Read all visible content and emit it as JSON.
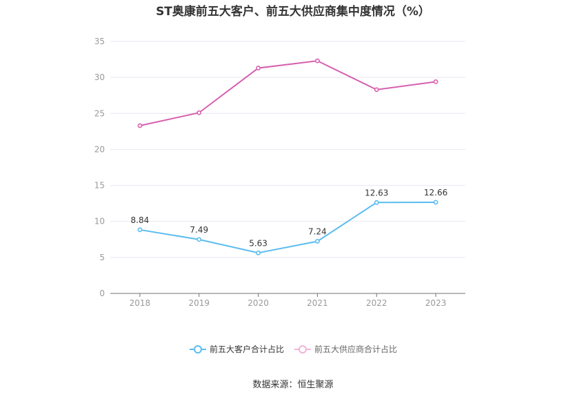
{
  "chart_data": {
    "type": "line",
    "title": "ST奥康前五大客户、前五大供应商集中度情况（%）",
    "categories": [
      "2018",
      "2019",
      "2020",
      "2021",
      "2022",
      "2023"
    ],
    "ylim": [
      0,
      35
    ],
    "yticks": [
      0,
      5,
      10,
      15,
      20,
      25,
      30,
      35
    ],
    "grid": true,
    "legend_position": "bottom",
    "series": [
      {
        "name": "前五大客户合计占比",
        "color": "#5bbcf0",
        "values": [
          8.84,
          7.49,
          5.63,
          7.24,
          12.63,
          12.66
        ],
        "labels": [
          "8.84",
          "7.49",
          "5.63",
          "7.24",
          "12.63",
          "12.66"
        ],
        "show_labels": true
      },
      {
        "name": "前五大供应商合计占比",
        "color": "#d65fae",
        "values": [
          23.3,
          25.1,
          31.3,
          32.3,
          28.3,
          29.4
        ],
        "show_labels": false
      }
    ]
  },
  "legend": {
    "item_1": "前五大客户合计占比",
    "item_2": "前五大供应商合计占比"
  },
  "source": "数据来源：恒生聚源"
}
